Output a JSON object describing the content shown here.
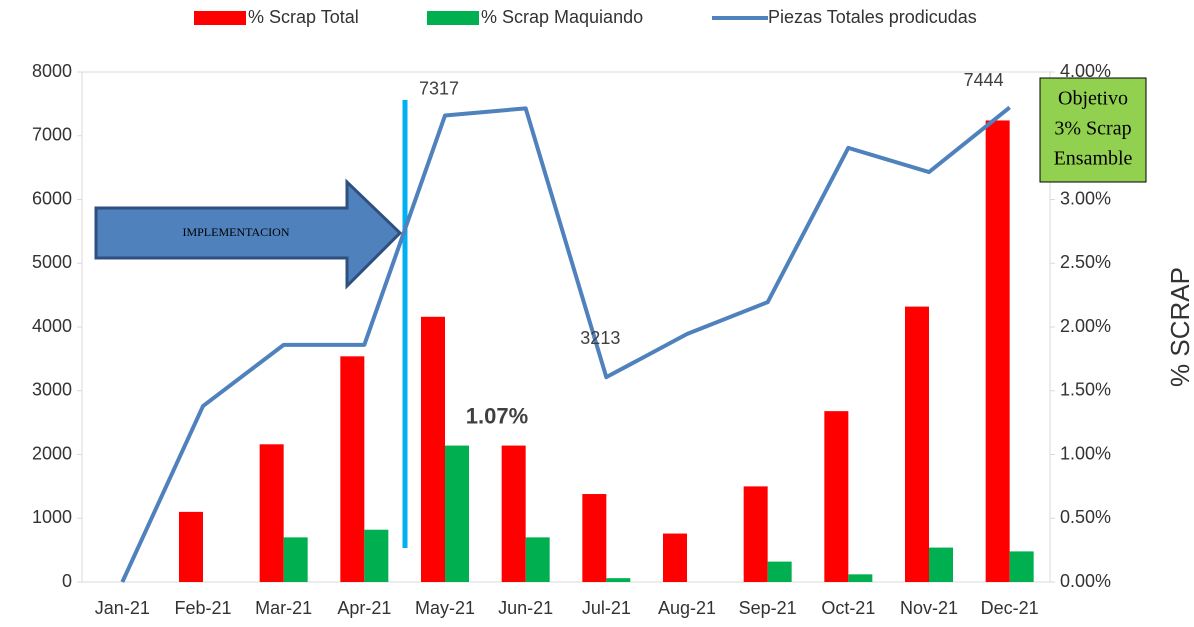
{
  "chart_data": {
    "type": "bar_line",
    "categories": [
      "Jan-21",
      "Feb-21",
      "Mar-21",
      "Apr-21",
      "May-21",
      "Jun-21",
      "Jul-21",
      "Aug-21",
      "Sep-21",
      "Oct-21",
      "Nov-21",
      "Dec-21"
    ],
    "series": [
      {
        "name": "% Scrap Total",
        "color": "#ff0000",
        "type": "bar",
        "axis": "y2",
        "values": [
          0,
          0.55,
          1.08,
          1.77,
          2.08,
          1.07,
          0.69,
          0.38,
          0.75,
          1.34,
          2.16,
          3.62
        ]
      },
      {
        "name": "% Scrap Maquiando",
        "color": "#00b050",
        "type": "bar",
        "axis": "y2",
        "values": [
          0,
          0,
          0.35,
          0.41,
          1.07,
          0.35,
          0.03,
          0,
          0.16,
          0.06,
          0.27,
          0.24
        ],
        "value_labels": [
          null,
          null,
          null,
          null,
          "1.07%",
          null,
          null,
          null,
          null,
          null,
          null,
          null
        ]
      },
      {
        "name": "Piezas Totales prodicudas",
        "color": "#4f81bd",
        "type": "line",
        "values": [
          0,
          2760,
          3720,
          3720,
          7317,
          7430,
          3213,
          3890,
          4390,
          6810,
          6430,
          7444
        ],
        "value_labels": [
          null,
          null,
          null,
          null,
          "7317",
          null,
          "3213",
          null,
          null,
          null,
          null,
          "7444"
        ]
      }
    ],
    "ylim": [
      0,
      8000
    ],
    "yticks": [
      0,
      1000,
      2000,
      3000,
      4000,
      5000,
      6000,
      7000,
      8000
    ],
    "y2lim": [
      0,
      4
    ],
    "y2ticks": [
      {
        "value": 0,
        "label": "0.00%"
      },
      {
        "value": 0.5,
        "label": "0.50%"
      },
      {
        "value": 1,
        "label": "1.00%"
      },
      {
        "value": 1.5,
        "label": "1.50%"
      },
      {
        "value": 2,
        "label": "2.00%"
      },
      {
        "value": 2.5,
        "label": "2.50%"
      },
      {
        "value": 3,
        "label": "3.00%"
      },
      {
        "value": 3.5,
        "label": "3.50%"
      },
      {
        "value": 4,
        "label": "4.00%"
      }
    ],
    "y2label": "% SCRAP",
    "annotations": {
      "arrow": "IMPLEMENTACION",
      "box": [
        "Objetivo",
        "3% Scrap",
        "Ensamble"
      ]
    }
  }
}
